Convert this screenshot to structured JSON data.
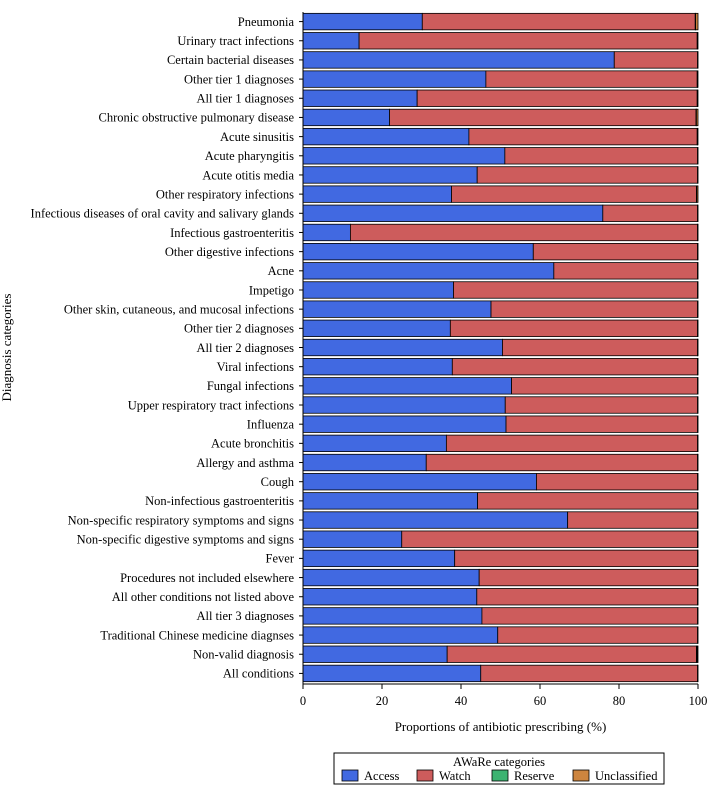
{
  "chart_data": {
    "type": "bar",
    "orientation": "horizontal",
    "stacked": true,
    "xlabel": "Proportions of antibiotic prescribing (%)",
    "ylabel": "Diagnosis categories",
    "xlim": [
      0,
      100
    ],
    "xticks": [
      0,
      20,
      40,
      60,
      80,
      100
    ],
    "categories": [
      "Pneumonia",
      "Urinary tract infections",
      "Certain bacterial diseases",
      "Other tier 1 diagnoses",
      "All tier 1 diagnoses",
      "Chronic obstructive pulmonary disease",
      "Acute sinusitis",
      "Acute pharyngitis",
      "Acute otitis media",
      "Other respiratory infections",
      "Infectious diseases of oral cavity and salivary glands",
      "Infectious gastroenteritis",
      "Other digestive infections",
      "Acne",
      "Impetigo",
      "Other skin, cutaneous, and mucosal infections",
      "Other tier 2 diagnoses",
      "All tier 2 diagnoses",
      "Viral infections",
      "Fungal infections",
      "Upper respiratory tract infections",
      "Influenza",
      "Acute bronchitis",
      "Allergy and asthma",
      "Cough",
      "Non-infectious gastroenteritis",
      "Non-specific respiratory symptoms and signs",
      "Non-specific digestive symptoms and signs",
      "Fever",
      "Procedures not included elsewhere",
      "All other conditions not listed above",
      "All tier 3 diagnoses",
      "Traditional Chinese medicine diagnses",
      "Non-valid diagnosis",
      "All conditions"
    ],
    "series": [
      {
        "name": "Access",
        "color": "#4169e1",
        "values": [
          30.2,
          14.2,
          78.8,
          46.3,
          28.9,
          21.9,
          42.0,
          51.1,
          44.1,
          37.6,
          75.9,
          12.0,
          58.3,
          63.5,
          38.1,
          47.6,
          37.3,
          50.5,
          37.8,
          52.8,
          51.2,
          51.4,
          36.3,
          31.2,
          59.1,
          44.2,
          67.0,
          25.0,
          38.4,
          44.6,
          44.0,
          45.3,
          49.3,
          36.5,
          45.0
        ]
      },
      {
        "name": "Watch",
        "color": "#cd5c5c",
        "values": [
          69.1,
          85.6,
          21.1,
          53.5,
          70.9,
          77.6,
          57.8,
          48.8,
          55.8,
          62.0,
          24.0,
          87.9,
          41.6,
          36.4,
          61.8,
          52.3,
          62.6,
          49.4,
          62.1,
          47.1,
          48.7,
          48.5,
          63.6,
          68.7,
          40.8,
          55.7,
          32.9,
          74.9,
          61.5,
          55.3,
          55.9,
          54.6,
          50.6,
          63.1,
          54.9
        ]
      },
      {
        "name": "Reserve",
        "color": "#3cb371",
        "values": [
          0.1,
          0.1,
          0.05,
          0.1,
          0.1,
          0.1,
          0.1,
          0.05,
          0.05,
          0.1,
          0.05,
          0.05,
          0.05,
          0.05,
          0.05,
          0.05,
          0.05,
          0.05,
          0.05,
          0.05,
          0.05,
          0.05,
          0.05,
          0.05,
          0.05,
          0.05,
          0.05,
          0.05,
          0.05,
          0.05,
          0.05,
          0.05,
          0.05,
          0.2,
          0.05
        ]
      },
      {
        "name": "Unclassified",
        "color": "#cd853f",
        "values": [
          0.6,
          0.1,
          0.05,
          0.1,
          0.1,
          0.4,
          0.1,
          0.05,
          0.05,
          0.3,
          0.05,
          0.05,
          0.05,
          0.05,
          0.05,
          0.05,
          0.05,
          0.05,
          0.05,
          0.05,
          0.05,
          0.05,
          0.05,
          0.05,
          0.05,
          0.05,
          0.05,
          0.05,
          0.05,
          0.05,
          0.05,
          0.05,
          0.05,
          0.2,
          0.05
        ]
      }
    ],
    "legend": {
      "title": "AWaRe categories",
      "position": "bottom",
      "entries": [
        "Access",
        "Watch",
        "Reserve",
        "Unclassified"
      ]
    }
  }
}
